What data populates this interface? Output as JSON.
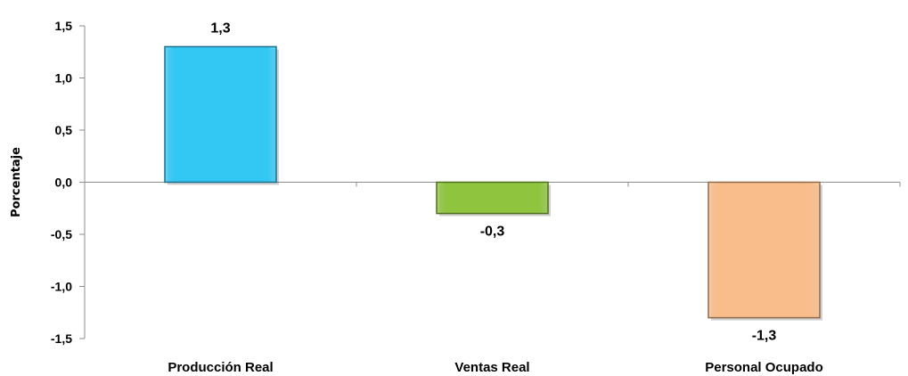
{
  "chart_data": {
    "type": "bar",
    "categories": [
      "Producción Real",
      "Ventas Real",
      "Personal Ocupado"
    ],
    "values": [
      1.3,
      -0.3,
      -1.3
    ],
    "value_labels": [
      "1,3",
      "-0,3",
      "-1,3"
    ],
    "colors": [
      "#33C8F4",
      "#8FC43F",
      "#F9BD8B"
    ],
    "border_colors": [
      "#1C6F8C",
      "#4F6E1E",
      "#8F6A4A"
    ],
    "ylabel": "Porcentaje",
    "xlabel": "",
    "ylim": [
      -1.5,
      1.5
    ],
    "y_ticks": [
      1.5,
      1.0,
      0.5,
      0.0,
      -0.5,
      -1.0,
      -1.5
    ],
    "y_tick_labels": [
      "1,5",
      "1,0",
      "0,5",
      "0,0",
      "-0,5",
      "-1,0",
      "-1,5"
    ],
    "grid": false,
    "legend": "none"
  }
}
